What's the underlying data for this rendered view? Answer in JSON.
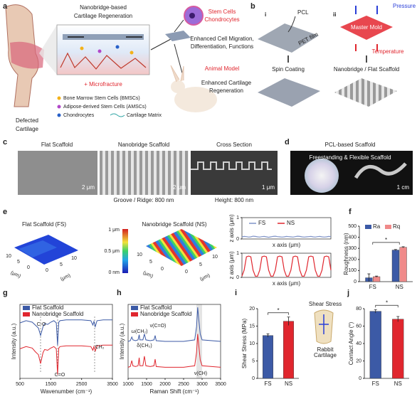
{
  "panels": {
    "labels": [
      "a",
      "b",
      "c",
      "d",
      "e",
      "f",
      "g",
      "h",
      "i",
      "j"
    ],
    "a": {
      "title": [
        "Nanobridge-based",
        "Cartilage Regeneration"
      ],
      "stem_cells": "Stem Cells",
      "chondrocytes": "Chondrocytes",
      "stem_effect": [
        "Enhanced Cell Migration,",
        "Differentiation, Functions"
      ],
      "animal_model": "Animal Model",
      "animal_effect": [
        "Enhanced Cartilage",
        "Regeneration"
      ],
      "microfracture": "+ Microfracture",
      "legend": [
        "Bone Marrow Stem Cells (BMSCs)",
        "Adipose-derived Stem Cells (AMSCs)",
        "Chondrocytes",
        "Cartilage Matrix"
      ],
      "defected": [
        "Defected",
        "Cartilage"
      ]
    },
    "b": {
      "i": "i",
      "ii": "ii",
      "pcl": "PCL",
      "pet": "PET film",
      "pressure": "Pressure",
      "mold": "Master Mold",
      "temperature": "Temperature",
      "step_i": "Spin Coating",
      "step_ii": "Nanobridge / Flat Scaffold"
    },
    "c": {
      "titles": [
        "Flat Scaffold",
        "Nanobridge Scaffold",
        "Cross Section"
      ],
      "scales": [
        "2 μm",
        "2 μm",
        "1 μm"
      ],
      "captions": [
        "Groove / Ridge: 800 nm",
        "Height: 800 nm"
      ]
    },
    "d": {
      "title": "PCL-based Scaffold",
      "caption": "Freestanding & Flexible Scaffold",
      "scale": "1 cm"
    },
    "e": {
      "titles": [
        "Flat Scaffold (FS)",
        "Nanobridge Scaffold (NS)"
      ],
      "colorbar": [
        "1 μm",
        "0.5 μm",
        "0 nm"
      ],
      "surface_ticks": [
        10,
        5,
        0,
        0,
        5,
        10
      ],
      "surface_unit": "(μm)"
    },
    "i": {
      "inset_top": "Shear Stress",
      "inset_bottom": [
        "Rabbit",
        "Cartilage"
      ]
    }
  },
  "chart_data": [
    {
      "type": "line",
      "stacked": true,
      "xlabel": "x axis (μm)",
      "ylabel": "z axis (μm)",
      "x": [
        0,
        0.25,
        0.5,
        0.75,
        1,
        1.25,
        1.5,
        1.75,
        2,
        2.25,
        2.5,
        2.75,
        3,
        3.25,
        3.5,
        3.75,
        4,
        4.25,
        4.5,
        4.75,
        5,
        5.25,
        5.5,
        5.75,
        6,
        6.25,
        6.5,
        6.75,
        7,
        7.25,
        7.5,
        7.75,
        8,
        8.25,
        8.5,
        8.75,
        9,
        9.25,
        9.5,
        9.75,
        10
      ],
      "xlim": [
        0,
        10
      ],
      "ylim": [
        0,
        1
      ],
      "yticks": [
        0,
        1
      ],
      "series": [
        {
          "name": "FS",
          "color": "#7f93c8",
          "values": [
            0.1,
            0.12,
            0.11,
            0.09,
            0.1,
            0.13,
            0.12,
            0.1,
            0.09,
            0.11,
            0.12,
            0.1,
            0.08,
            0.1,
            0.12,
            0.13,
            0.11,
            0.1,
            0.09,
            0.1,
            0.12,
            0.11,
            0.1,
            0.09,
            0.11,
            0.13,
            0.12,
            0.1,
            0.09,
            0.1,
            0.11,
            0.12,
            0.1,
            0.09,
            0.11,
            0.12,
            0.1,
            0.09,
            0.1,
            0.12,
            0.11
          ]
        },
        {
          "name": "NS",
          "color": "#e0262e",
          "values": [
            0.05,
            0.3,
            0.85,
            0.88,
            0.85,
            0.3,
            0.05,
            0.05,
            0.3,
            0.85,
            0.88,
            0.85,
            0.3,
            0.05,
            0.05,
            0.3,
            0.85,
            0.88,
            0.85,
            0.3,
            0.05,
            0.05,
            0.3,
            0.85,
            0.88,
            0.85,
            0.3,
            0.05,
            0.05,
            0.3,
            0.85,
            0.88,
            0.85,
            0.3,
            0.05,
            0.05,
            0.3,
            0.85,
            0.88,
            0.85,
            0.3
          ]
        }
      ]
    },
    {
      "type": "bar",
      "ylabel": "Roughness (nm)",
      "categories": [
        "FS",
        "NS"
      ],
      "ylim": [
        0,
        500
      ],
      "yticks": [
        0,
        100,
        200,
        300,
        400,
        500
      ],
      "annotation": "*",
      "series": [
        {
          "name": "Ra",
          "color": "#3c5aa6",
          "values": [
            35,
            285
          ],
          "errors": [
            35,
            5
          ]
        },
        {
          "name": "Rq",
          "color": "#f08a8a",
          "values": [
            45,
            310
          ],
          "errors": [
            5,
            5
          ]
        }
      ]
    },
    {
      "type": "line",
      "xlabel": "Wavenumber (cm⁻¹)",
      "ylabel": "Intensity (a.u.)",
      "x": [
        500,
        700,
        900,
        1000,
        1100,
        1170,
        1250,
        1300,
        1400,
        1500,
        1600,
        1680,
        1720,
        1760,
        1800,
        2000,
        2500,
        2800,
        2865,
        2900,
        2945,
        3000,
        3200,
        3500
      ],
      "xlim": [
        500,
        3500
      ],
      "xticks": [
        500,
        1500,
        2500,
        3500
      ],
      "ylim": [
        0,
        10
      ],
      "annotations": [
        "C-O",
        "C=O",
        "CH₂"
      ],
      "series": [
        {
          "name": "Flat Scaffold",
          "color": "#3c5aa6",
          "values": [
            7.5,
            7.8,
            7.6,
            7.2,
            6.8,
            5.8,
            7.0,
            7.4,
            7.3,
            7.6,
            7.8,
            7.5,
            4.5,
            7.6,
            7.8,
            7.9,
            7.9,
            7.8,
            7.2,
            7.7,
            7.0,
            7.8,
            7.9,
            7.9
          ]
        },
        {
          "name": "Nanobridge Scaffold",
          "color": "#e0262e",
          "values": [
            4,
            4.3,
            4.1,
            3.6,
            3.2,
            2.0,
            3.5,
            3.9,
            3.8,
            4.1,
            4.3,
            4.0,
            0.5,
            4.1,
            4.3,
            4.4,
            4.4,
            4.3,
            3.8,
            4.3,
            3.7,
            4.4,
            4.5,
            4.5
          ]
        }
      ]
    },
    {
      "type": "line",
      "xlabel": "Raman Shift (cm⁻¹)",
      "ylabel": "Intensity (a.u.)",
      "x": [
        1000,
        1060,
        1100,
        1130,
        1200,
        1270,
        1300,
        1320,
        1400,
        1440,
        1480,
        1600,
        1700,
        1730,
        1760,
        2000,
        2500,
        2800,
        2850,
        2880,
        2910,
        2950,
        3000,
        3500
      ],
      "xlim": [
        1000,
        3500
      ],
      "xticks": [
        1000,
        1500,
        2000,
        2500,
        3000,
        3500
      ],
      "ylim": [
        0,
        10
      ],
      "annotations": [
        "ω(CH₂)",
        "ν(C=O)",
        "δ(CH₂)",
        "ν(CH)"
      ],
      "series": [
        {
          "name": "Flat Scaffold",
          "color": "#3c5aa6",
          "values": [
            5,
            5.1,
            5.6,
            5.2,
            5.1,
            5.2,
            5.9,
            5.2,
            5.2,
            6.0,
            5.2,
            5.1,
            5.2,
            5.8,
            5.1,
            5.0,
            5.0,
            5.2,
            7.0,
            9.6,
            8.0,
            6.0,
            5.2,
            5.0
          ]
        },
        {
          "name": "Nanobridge Scaffold",
          "color": "#e0262e",
          "values": [
            1.5,
            1.6,
            2.4,
            1.7,
            1.6,
            1.7,
            2.8,
            1.7,
            1.7,
            3.0,
            1.7,
            1.6,
            1.7,
            2.6,
            1.6,
            1.5,
            1.5,
            1.7,
            3.5,
            6.0,
            4.5,
            2.5,
            1.7,
            1.5
          ]
        }
      ]
    },
    {
      "type": "bar",
      "ylabel": "Shear Stress (MPa)",
      "categories": [
        "FS",
        "NS"
      ],
      "values": [
        12.3,
        16.4
      ],
      "errors": [
        0.5,
        1.2
      ],
      "colors": [
        "#3c5aa6",
        "#e0262e"
      ],
      "ylim": [
        0,
        20
      ],
      "yticks": [
        0,
        5,
        10,
        15,
        20
      ],
      "annotation": "*"
    },
    {
      "type": "bar",
      "ylabel": "Contact Angle (°)",
      "categories": [
        "FS",
        "NS"
      ],
      "values": [
        77,
        68
      ],
      "errors": [
        2,
        3
      ],
      "colors": [
        "#3c5aa6",
        "#e0262e"
      ],
      "ylim": [
        0,
        80
      ],
      "yticks": [
        0,
        20,
        40,
        60,
        80
      ],
      "annotation": "*"
    }
  ]
}
